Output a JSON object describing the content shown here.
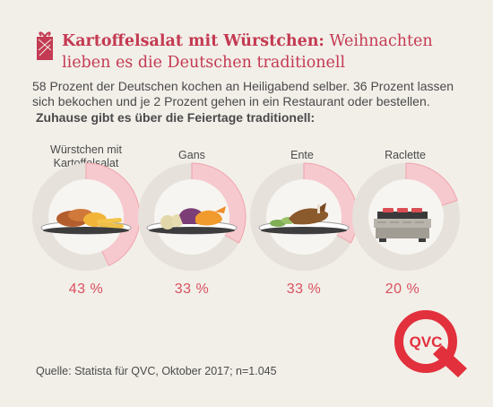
{
  "headline": {
    "bold": "Kartoffelsalat mit Würstchen:",
    "rest": " Weihnachten lieben es die Deutschen traditionell"
  },
  "intro": "58 Prozent der Deutschen kochen an Heiligabend selber. 36 Prozent lassen sich bekochen und je 2 Prozent gehen in ein Restaurant oder bestellen.",
  "intro_strong": "Zuhause gibt es über die Feiertage traditionell:",
  "chart_data": {
    "type": "pie",
    "title": "Zuhause gibt es über die Feiertage traditionell:",
    "categories": [
      "Würstchen mit Kartoffelsalat",
      "Gans",
      "Ente",
      "Raclette"
    ],
    "values": [
      43,
      33,
      33,
      20
    ],
    "value_labels": [
      "43 %",
      "33 %",
      "33 %",
      "20 %"
    ],
    "unit": "%",
    "max": 100
  },
  "source": "Quelle: Statista für QVC, Oktober 2017; n=1.045",
  "logo": {
    "text": "QVC",
    "icon": "qvc-logo"
  },
  "colors": {
    "accent": "#c43a52",
    "slice": "#f6c9ce",
    "slice_stroke": "#f0a4ad",
    "ring": "#e6e1da",
    "inner": "#f7f5f1",
    "percent_text": "#d9505f",
    "background": "#f2efe9"
  },
  "icons": [
    "gift-icon",
    "sausage-plate-icon",
    "goose-plate-icon",
    "duck-plate-icon",
    "raclette-icon"
  ]
}
